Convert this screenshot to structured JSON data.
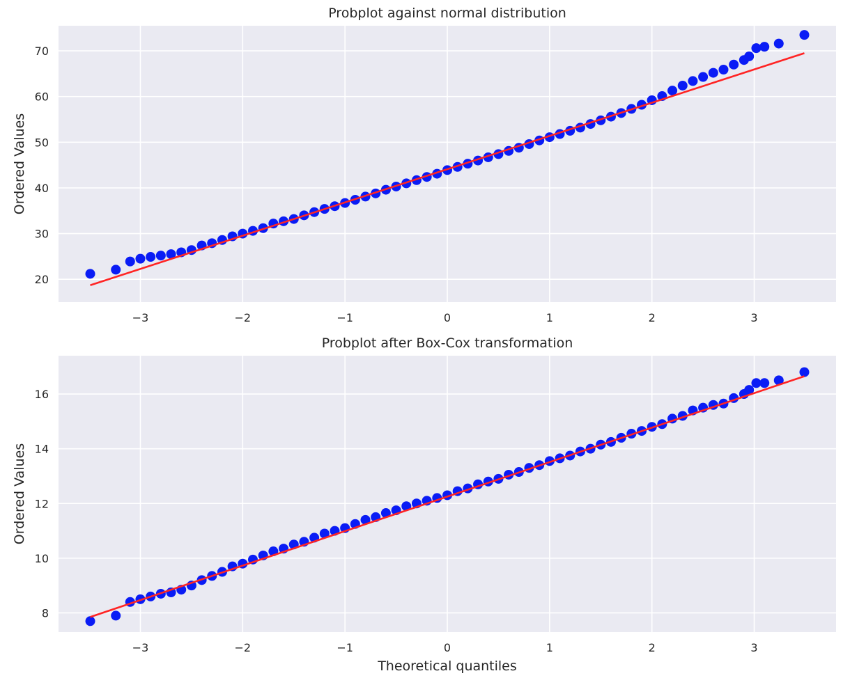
{
  "chart_data": [
    {
      "type": "scatter",
      "title": "Probplot against normal distribution",
      "xlabel": "",
      "ylabel": "Ordered Values",
      "xlim": [
        -3.8,
        3.8
      ],
      "ylim": [
        15,
        75.5
      ],
      "xticks": [
        -3,
        -2,
        -1,
        0,
        1,
        2,
        3
      ],
      "xtick_labels": [
        "−3",
        "−2",
        "−1",
        "0",
        "1",
        "2",
        "3"
      ],
      "yticks": [
        20,
        30,
        40,
        50,
        60,
        70
      ],
      "ytick_labels": [
        "20",
        "30",
        "40",
        "50",
        "60",
        "70"
      ],
      "grid": true,
      "colors": {
        "points": "#0a1cf5",
        "fit_line": "#ff2424",
        "background": "#eaeaf2"
      },
      "points": [
        {
          "x": -3.49,
          "y": 21.2
        },
        {
          "x": -3.24,
          "y": 22.1
        },
        {
          "x": -3.1,
          "y": 23.9
        },
        {
          "x": -3.0,
          "y": 24.5
        },
        {
          "x": -2.9,
          "y": 24.9
        },
        {
          "x": -2.8,
          "y": 25.2
        },
        {
          "x": -2.7,
          "y": 25.5
        },
        {
          "x": -2.6,
          "y": 25.9
        },
        {
          "x": -2.5,
          "y": 26.4
        },
        {
          "x": -2.4,
          "y": 27.4
        },
        {
          "x": -2.3,
          "y": 27.9
        },
        {
          "x": -2.2,
          "y": 28.6
        },
        {
          "x": -2.1,
          "y": 29.4
        },
        {
          "x": -2.0,
          "y": 30.0
        },
        {
          "x": -1.9,
          "y": 30.6
        },
        {
          "x": -1.8,
          "y": 31.2
        },
        {
          "x": -1.7,
          "y": 32.2
        },
        {
          "x": -1.6,
          "y": 32.7
        },
        {
          "x": -1.5,
          "y": 33.2
        },
        {
          "x": -1.4,
          "y": 34.0
        },
        {
          "x": -1.3,
          "y": 34.7
        },
        {
          "x": -1.2,
          "y": 35.4
        },
        {
          "x": -1.1,
          "y": 36.0
        },
        {
          "x": -1.0,
          "y": 36.7
        },
        {
          "x": -0.9,
          "y": 37.4
        },
        {
          "x": -0.8,
          "y": 38.1
        },
        {
          "x": -0.7,
          "y": 38.8
        },
        {
          "x": -0.6,
          "y": 39.6
        },
        {
          "x": -0.5,
          "y": 40.3
        },
        {
          "x": -0.4,
          "y": 41.0
        },
        {
          "x": -0.3,
          "y": 41.7
        },
        {
          "x": -0.2,
          "y": 42.4
        },
        {
          "x": -0.1,
          "y": 43.1
        },
        {
          "x": 0.0,
          "y": 43.9
        },
        {
          "x": 0.1,
          "y": 44.6
        },
        {
          "x": 0.2,
          "y": 45.3
        },
        {
          "x": 0.3,
          "y": 46.0
        },
        {
          "x": 0.4,
          "y": 46.7
        },
        {
          "x": 0.5,
          "y": 47.4
        },
        {
          "x": 0.6,
          "y": 48.1
        },
        {
          "x": 0.7,
          "y": 48.8
        },
        {
          "x": 0.8,
          "y": 49.6
        },
        {
          "x": 0.9,
          "y": 50.4
        },
        {
          "x": 1.0,
          "y": 51.1
        },
        {
          "x": 1.1,
          "y": 51.8
        },
        {
          "x": 1.2,
          "y": 52.5
        },
        {
          "x": 1.3,
          "y": 53.2
        },
        {
          "x": 1.4,
          "y": 54.0
        },
        {
          "x": 1.5,
          "y": 54.8
        },
        {
          "x": 1.6,
          "y": 55.6
        },
        {
          "x": 1.7,
          "y": 56.4
        },
        {
          "x": 1.8,
          "y": 57.3
        },
        {
          "x": 1.9,
          "y": 58.2
        },
        {
          "x": 2.0,
          "y": 59.2
        },
        {
          "x": 2.1,
          "y": 60.1
        },
        {
          "x": 2.2,
          "y": 61.3
        },
        {
          "x": 2.3,
          "y": 62.4
        },
        {
          "x": 2.4,
          "y": 63.4
        },
        {
          "x": 2.5,
          "y": 64.3
        },
        {
          "x": 2.6,
          "y": 65.2
        },
        {
          "x": 2.7,
          "y": 65.9
        },
        {
          "x": 2.8,
          "y": 67.0
        },
        {
          "x": 2.9,
          "y": 68.0
        },
        {
          "x": 2.95,
          "y": 68.8
        },
        {
          "x": 3.02,
          "y": 70.6
        },
        {
          "x": 3.1,
          "y": 70.9
        },
        {
          "x": 3.24,
          "y": 71.6
        },
        {
          "x": 3.49,
          "y": 73.5
        }
      ],
      "fit_line": {
        "x": [
          -3.49,
          3.49
        ],
        "y": [
          18.7,
          69.5
        ]
      }
    },
    {
      "type": "scatter",
      "title": "Probplot after Box-Cox transformation",
      "xlabel": "Theoretical quantiles",
      "ylabel": "Ordered Values",
      "xlim": [
        -3.8,
        3.8
      ],
      "ylim": [
        7.3,
        17.4
      ],
      "xticks": [
        -3,
        -2,
        -1,
        0,
        1,
        2,
        3
      ],
      "xtick_labels": [
        "−3",
        "−2",
        "−1",
        "0",
        "1",
        "2",
        "3"
      ],
      "yticks": [
        8,
        10,
        12,
        14,
        16
      ],
      "ytick_labels": [
        "8",
        "10",
        "12",
        "14",
        "16"
      ],
      "grid": true,
      "colors": {
        "points": "#0a1cf5",
        "fit_line": "#ff2424",
        "background": "#eaeaf2"
      },
      "points": [
        {
          "x": -3.49,
          "y": 7.7
        },
        {
          "x": -3.24,
          "y": 7.9
        },
        {
          "x": -3.1,
          "y": 8.4
        },
        {
          "x": -3.0,
          "y": 8.5
        },
        {
          "x": -2.9,
          "y": 8.6
        },
        {
          "x": -2.8,
          "y": 8.7
        },
        {
          "x": -2.7,
          "y": 8.75
        },
        {
          "x": -2.6,
          "y": 8.85
        },
        {
          "x": -2.5,
          "y": 9.0
        },
        {
          "x": -2.4,
          "y": 9.2
        },
        {
          "x": -2.3,
          "y": 9.35
        },
        {
          "x": -2.2,
          "y": 9.5
        },
        {
          "x": -2.1,
          "y": 9.7
        },
        {
          "x": -2.0,
          "y": 9.8
        },
        {
          "x": -1.9,
          "y": 9.95
        },
        {
          "x": -1.8,
          "y": 10.1
        },
        {
          "x": -1.7,
          "y": 10.25
        },
        {
          "x": -1.6,
          "y": 10.35
        },
        {
          "x": -1.5,
          "y": 10.5
        },
        {
          "x": -1.4,
          "y": 10.6
        },
        {
          "x": -1.3,
          "y": 10.75
        },
        {
          "x": -1.2,
          "y": 10.9
        },
        {
          "x": -1.1,
          "y": 11.0
        },
        {
          "x": -1.0,
          "y": 11.1
        },
        {
          "x": -0.9,
          "y": 11.25
        },
        {
          "x": -0.8,
          "y": 11.4
        },
        {
          "x": -0.7,
          "y": 11.5
        },
        {
          "x": -0.6,
          "y": 11.65
        },
        {
          "x": -0.5,
          "y": 11.75
        },
        {
          "x": -0.4,
          "y": 11.9
        },
        {
          "x": -0.3,
          "y": 12.0
        },
        {
          "x": -0.2,
          "y": 12.1
        },
        {
          "x": -0.1,
          "y": 12.2
        },
        {
          "x": 0.0,
          "y": 12.3
        },
        {
          "x": 0.1,
          "y": 12.45
        },
        {
          "x": 0.2,
          "y": 12.55
        },
        {
          "x": 0.3,
          "y": 12.7
        },
        {
          "x": 0.4,
          "y": 12.8
        },
        {
          "x": 0.5,
          "y": 12.9
        },
        {
          "x": 0.6,
          "y": 13.05
        },
        {
          "x": 0.7,
          "y": 13.15
        },
        {
          "x": 0.8,
          "y": 13.3
        },
        {
          "x": 0.9,
          "y": 13.4
        },
        {
          "x": 1.0,
          "y": 13.55
        },
        {
          "x": 1.1,
          "y": 13.65
        },
        {
          "x": 1.2,
          "y": 13.75
        },
        {
          "x": 1.3,
          "y": 13.9
        },
        {
          "x": 1.4,
          "y": 14.0
        },
        {
          "x": 1.5,
          "y": 14.15
        },
        {
          "x": 1.6,
          "y": 14.25
        },
        {
          "x": 1.7,
          "y": 14.4
        },
        {
          "x": 1.8,
          "y": 14.55
        },
        {
          "x": 1.9,
          "y": 14.65
        },
        {
          "x": 2.0,
          "y": 14.8
        },
        {
          "x": 2.1,
          "y": 14.9
        },
        {
          "x": 2.2,
          "y": 15.1
        },
        {
          "x": 2.3,
          "y": 15.2
        },
        {
          "x": 2.4,
          "y": 15.4
        },
        {
          "x": 2.5,
          "y": 15.5
        },
        {
          "x": 2.6,
          "y": 15.6
        },
        {
          "x": 2.7,
          "y": 15.65
        },
        {
          "x": 2.8,
          "y": 15.85
        },
        {
          "x": 2.9,
          "y": 16.0
        },
        {
          "x": 2.95,
          "y": 16.15
        },
        {
          "x": 3.02,
          "y": 16.4
        },
        {
          "x": 3.1,
          "y": 16.4
        },
        {
          "x": 3.24,
          "y": 16.5
        },
        {
          "x": 3.49,
          "y": 16.8
        }
      ],
      "fit_line": {
        "x": [
          -3.49,
          3.49
        ],
        "y": [
          7.85,
          16.65
        ]
      }
    }
  ]
}
